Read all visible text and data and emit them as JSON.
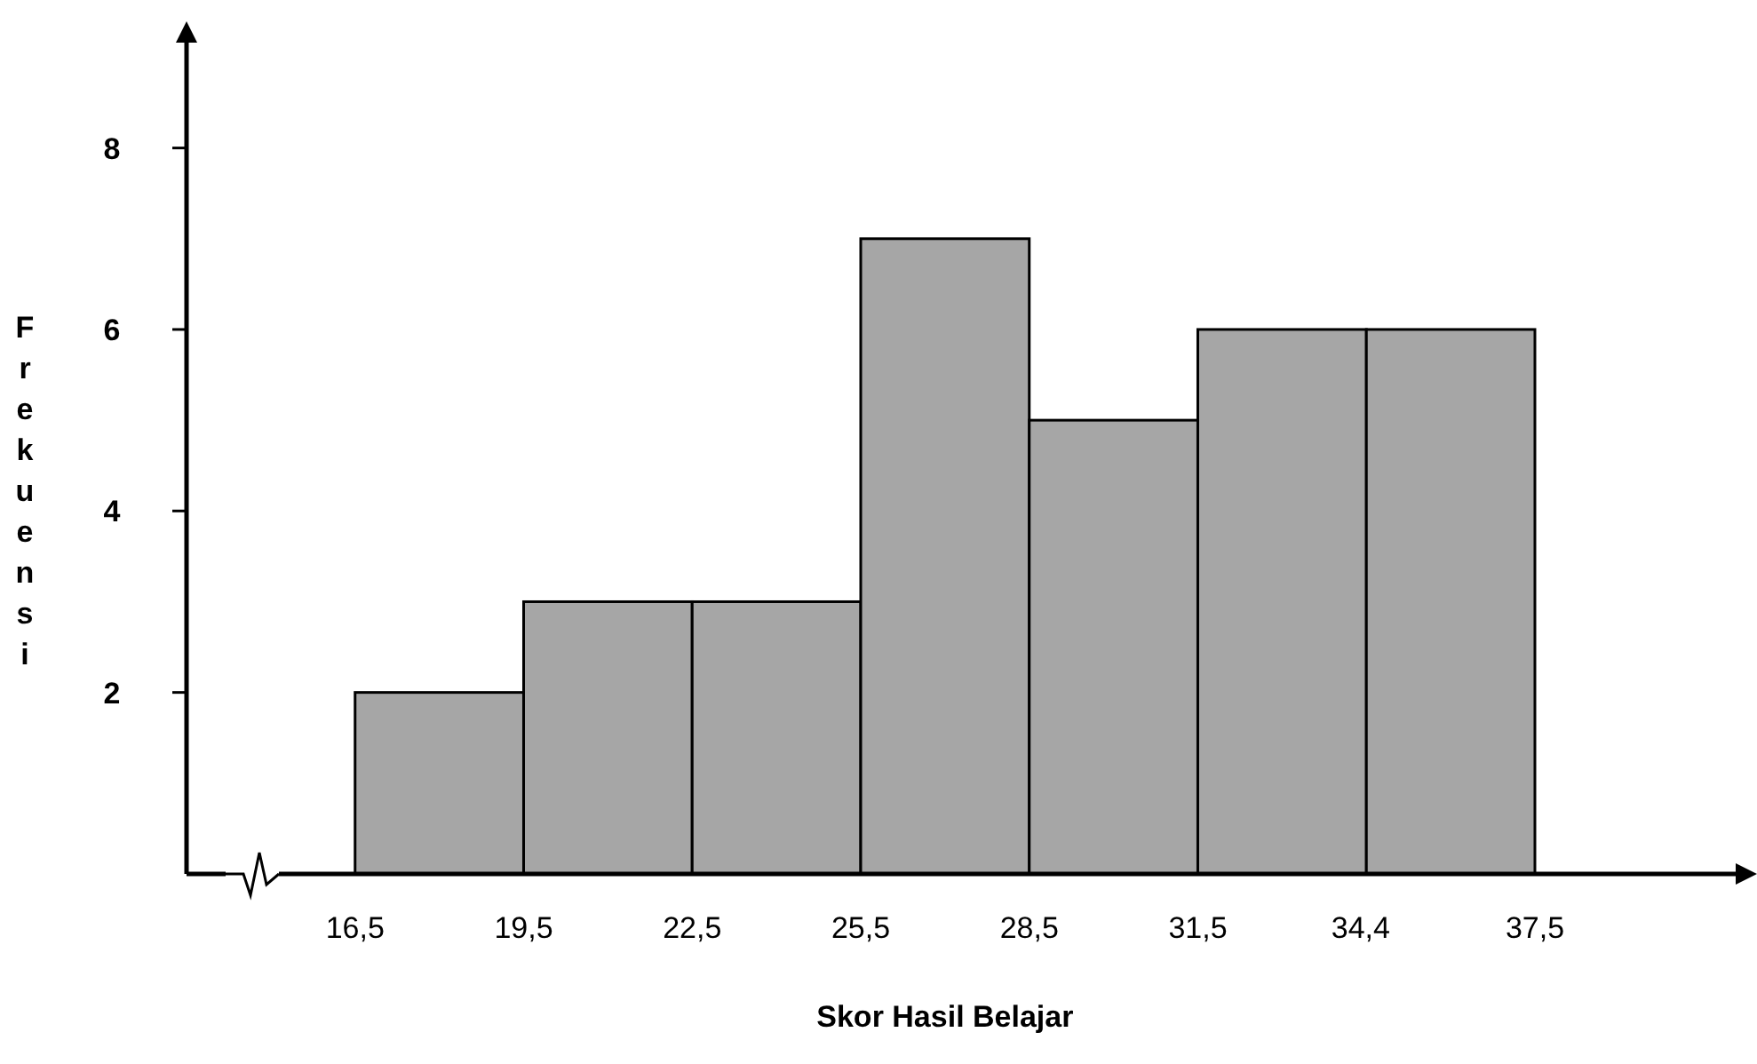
{
  "chart_data": {
    "type": "histogram",
    "xlabel": "Skor Hasil Belajar",
    "ylabel": "Frekuensi",
    "bins": [
      16.5,
      19.5,
      22.5,
      25.5,
      28.5,
      31.5,
      34.5,
      37.5
    ],
    "values": [
      2,
      3,
      3,
      7,
      5,
      6,
      6
    ],
    "color": "#a6a6a6",
    "xlim": [
      13.5,
      41.2
    ],
    "xticks": [
      {
        "value": 16.5,
        "label": "16,5"
      },
      {
        "value": 19.5,
        "label": "19,5"
      },
      {
        "value": 22.5,
        "label": "22,5"
      },
      {
        "value": 25.5,
        "label": "25,5"
      },
      {
        "value": 28.5,
        "label": "28,5"
      },
      {
        "value": 31.5,
        "label": "31,5"
      },
      {
        "value": 34.4,
        "label": "34,4"
      },
      {
        "value": 37.5,
        "label": "37,5"
      }
    ],
    "ylim": [
      0,
      9.2
    ],
    "yticks": [
      2,
      4,
      6,
      8
    ]
  }
}
